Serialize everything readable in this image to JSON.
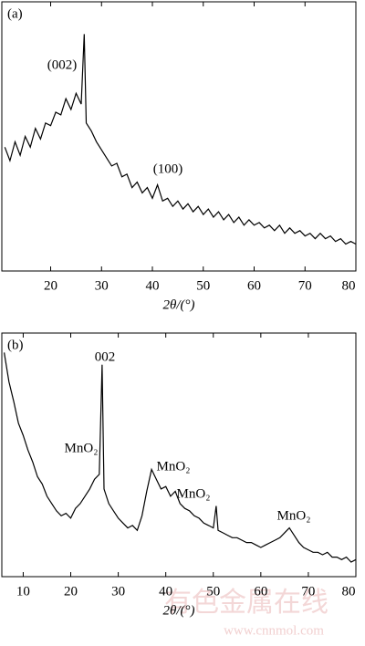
{
  "chart_data": [
    {
      "type": "line",
      "panel_label": "(a)",
      "xlabel": "2θ/(°)",
      "color": "#000000",
      "annotations": [
        "(002)",
        "(100)"
      ],
      "xlim": [
        10.4,
        80
      ],
      "xticks": [
        20,
        30,
        40,
        50,
        60,
        70,
        80
      ],
      "ylim": [
        0,
        100
      ],
      "x": [
        11,
        12,
        13,
        14,
        15,
        16,
        17,
        18,
        19,
        20,
        21,
        22,
        23,
        24,
        25,
        26,
        26.6,
        27,
        28,
        29,
        30,
        31,
        32,
        33,
        34,
        35,
        36,
        37,
        38,
        39,
        40,
        41,
        42,
        43,
        44,
        45,
        46,
        47,
        48,
        49,
        50,
        51,
        52,
        53,
        54,
        55,
        56,
        57,
        58,
        59,
        60,
        61,
        62,
        63,
        64,
        65,
        66,
        67,
        68,
        69,
        70,
        71,
        72,
        73,
        74,
        75,
        76,
        77,
        78,
        79,
        80
      ],
      "values": [
        46,
        41,
        48,
        43,
        50,
        46,
        53,
        49,
        55,
        54,
        59,
        58,
        64,
        60,
        66,
        62,
        88,
        55,
        52,
        48,
        45,
        42,
        39,
        40,
        35,
        36,
        31,
        33,
        29,
        31,
        27,
        32,
        26,
        27,
        24,
        26,
        23,
        25,
        22,
        24,
        21,
        23,
        20,
        22,
        19,
        21,
        18,
        20,
        17,
        19,
        17,
        18,
        16,
        17,
        15,
        17,
        14,
        16,
        14,
        15,
        13,
        14,
        12,
        14,
        12,
        13,
        11,
        12,
        10,
        11,
        10
      ]
    },
    {
      "type": "line",
      "panel_label": "(b)",
      "xlabel": "2θ/(°)",
      "color": "#000000",
      "annotations": [
        "002",
        "MnO₂",
        "MnO₂",
        "MnO₂",
        "MnO₂"
      ],
      "xlim": [
        5.5,
        80
      ],
      "xticks": [
        10,
        20,
        30,
        40,
        50,
        60,
        70,
        80
      ],
      "ylim": [
        0,
        100
      ],
      "x": [
        6,
        7,
        8,
        9,
        10,
        11,
        12,
        13,
        14,
        15,
        16,
        17,
        18,
        19,
        20,
        21,
        22,
        23,
        24,
        25,
        26,
        26.6,
        27,
        28,
        29,
        30,
        31,
        32,
        33,
        34,
        35,
        36,
        37,
        38,
        39,
        40,
        41,
        42,
        43,
        44,
        45,
        46,
        47,
        48,
        49,
        50,
        50.6,
        51,
        52,
        53,
        54,
        55,
        56,
        57,
        58,
        59,
        60,
        61,
        62,
        63,
        64,
        65,
        66,
        67,
        68,
        69,
        70,
        71,
        72,
        73,
        74,
        75,
        76,
        77,
        78,
        79,
        80
      ],
      "values": [
        92,
        80,
        72,
        63,
        58,
        52,
        47,
        41,
        38,
        33,
        30,
        27,
        25,
        26,
        24,
        28,
        30,
        33,
        36,
        40,
        42,
        87,
        36,
        30,
        27,
        24,
        22,
        20,
        21,
        19,
        25,
        35,
        44,
        40,
        36,
        37,
        33,
        35,
        30,
        28,
        27,
        25,
        24,
        22,
        21,
        20,
        29,
        19,
        18,
        17,
        16,
        16,
        15,
        14,
        14,
        13,
        12,
        13,
        14,
        15,
        16,
        18,
        20,
        17,
        14,
        12,
        11,
        10,
        10,
        9,
        10,
        8,
        8,
        7,
        8,
        6,
        7
      ]
    }
  ],
  "watermark": [
    "有色金属在线",
    "www.cnnmol.com"
  ]
}
